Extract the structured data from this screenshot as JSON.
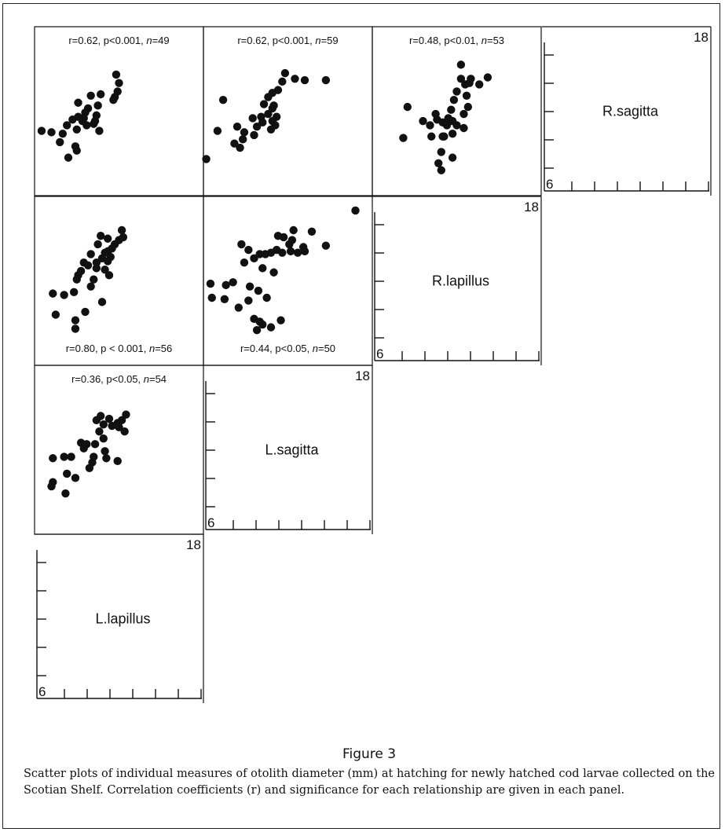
{
  "figure": {
    "number": "Figure 3",
    "caption": "Scatter plots of individual measures of otolith diameter (mm) at hatching for newly hatched cod larvae collected on the Scotian Shelf. Correlation coefficients (r) and significance for each relationship are given in each panel."
  },
  "axis": {
    "min_label": "6",
    "max_label": "18",
    "min": 6,
    "max": 18
  },
  "chart_data": [
    {
      "type": "scatter",
      "row": 0,
      "col": 0,
      "annotation": "r=0.62, p<0.001, n=49",
      "annotation_position": "top",
      "ylim": [
        6,
        18
      ],
      "xlim": [
        6,
        18
      ],
      "points": [
        [
          11.8,
          14.6
        ],
        [
          12.0,
          14.0
        ],
        [
          11.9,
          13.4
        ],
        [
          11.7,
          13.0
        ],
        [
          11.6,
          12.8
        ],
        [
          10.7,
          13.2
        ],
        [
          10.5,
          12.4
        ],
        [
          10.0,
          13.1
        ],
        [
          9.8,
          12.2
        ],
        [
          9.6,
          11.9
        ],
        [
          9.5,
          11.5
        ],
        [
          9.4,
          11.3
        ],
        [
          9.7,
          11.0
        ],
        [
          9.1,
          11.6
        ],
        [
          10.2,
          11.1
        ],
        [
          10.6,
          10.6
        ],
        [
          10.4,
          11.7
        ],
        [
          10.3,
          11.3
        ],
        [
          9.0,
          10.7
        ],
        [
          8.7,
          11.4
        ],
        [
          8.3,
          11.0
        ],
        [
          9.1,
          12.6
        ],
        [
          8.0,
          10.4
        ],
        [
          7.2,
          10.5
        ],
        [
          6.5,
          10.6
        ],
        [
          7.8,
          9.8
        ],
        [
          8.9,
          9.5
        ],
        [
          9.0,
          9.2
        ],
        [
          8.4,
          8.7
        ]
      ]
    },
    {
      "type": "scatter",
      "row": 0,
      "col": 1,
      "annotation": "r=0.62, p<0.001, n=59",
      "annotation_position": "top",
      "ylim": [
        6,
        18
      ],
      "xlim": [
        6,
        18
      ],
      "points": [
        [
          6.2,
          8.6
        ],
        [
          7.0,
          10.6
        ],
        [
          7.4,
          12.8
        ],
        [
          8.4,
          10.9
        ],
        [
          8.9,
          10.5
        ],
        [
          8.8,
          10.0
        ],
        [
          8.2,
          9.7
        ],
        [
          8.6,
          9.4
        ],
        [
          9.6,
          10.3
        ],
        [
          9.8,
          10.9
        ],
        [
          10.2,
          11.2
        ],
        [
          9.5,
          11.5
        ],
        [
          10.1,
          11.6
        ],
        [
          10.6,
          11.8
        ],
        [
          10.9,
          12.2
        ],
        [
          10.3,
          12.5
        ],
        [
          11.0,
          12.4
        ],
        [
          11.2,
          11.6
        ],
        [
          10.9,
          11.3
        ],
        [
          10.6,
          13.0
        ],
        [
          10.9,
          13.3
        ],
        [
          11.3,
          13.5
        ],
        [
          11.6,
          14.1
        ],
        [
          11.8,
          14.7
        ],
        [
          12.5,
          14.3
        ],
        [
          13.2,
          14.2
        ],
        [
          14.7,
          14.2
        ],
        [
          11.1,
          11.0
        ],
        [
          10.8,
          10.7
        ]
      ]
    },
    {
      "type": "scatter",
      "row": 0,
      "col": 2,
      "annotation": "r=0.48, p<0.01, n=53",
      "annotation_position": "top",
      "ylim": [
        6,
        18
      ],
      "xlim": [
        6,
        18
      ],
      "points": [
        [
          8.2,
          10.1
        ],
        [
          8.5,
          12.3
        ],
        [
          9.6,
          11.3
        ],
        [
          10.1,
          11.0
        ],
        [
          10.6,
          11.4
        ],
        [
          10.2,
          10.2
        ],
        [
          10.5,
          11.8
        ],
        [
          11.0,
          11.2
        ],
        [
          11.3,
          11.0
        ],
        [
          11.4,
          11.5
        ],
        [
          11.7,
          11.3
        ],
        [
          11.6,
          12.1
        ],
        [
          11.8,
          12.8
        ],
        [
          12.0,
          13.4
        ],
        [
          12.3,
          14.3
        ],
        [
          12.6,
          13.9
        ],
        [
          12.9,
          14.0
        ],
        [
          13.0,
          14.3
        ],
        [
          12.7,
          13.1
        ],
        [
          12.8,
          12.3
        ],
        [
          12.5,
          11.8
        ],
        [
          12.5,
          10.8
        ],
        [
          12.0,
          11.0
        ],
        [
          11.7,
          10.4
        ],
        [
          11.1,
          10.2
        ],
        [
          10.9,
          9.1
        ],
        [
          10.7,
          8.3
        ],
        [
          10.9,
          7.8
        ],
        [
          11.7,
          8.7
        ],
        [
          12.3,
          15.3
        ],
        [
          13.6,
          13.9
        ],
        [
          14.2,
          14.4
        ],
        [
          11.0,
          10.2
        ]
      ]
    },
    {
      "type": "scatter",
      "row": 1,
      "col": 0,
      "annotation": "r=0.80, p < 0.001, n=56",
      "annotation_position": "bottom",
      "ylim": [
        6,
        18
      ],
      "xlim": [
        6,
        18
      ],
      "points": [
        [
          12.2,
          15.6
        ],
        [
          12.3,
          15.1
        ],
        [
          12.0,
          14.9
        ],
        [
          11.7,
          14.6
        ],
        [
          11.5,
          14.3
        ],
        [
          11.2,
          14.1
        ],
        [
          11.0,
          14.0
        ],
        [
          11.4,
          13.7
        ],
        [
          11.2,
          13.4
        ],
        [
          10.8,
          13.6
        ],
        [
          10.4,
          13.3
        ],
        [
          10.0,
          13.9
        ],
        [
          10.5,
          14.6
        ],
        [
          10.7,
          15.2
        ],
        [
          11.2,
          15.0
        ],
        [
          9.8,
          13.1
        ],
        [
          9.5,
          13.3
        ],
        [
          9.3,
          12.7
        ],
        [
          9.1,
          12.4
        ],
        [
          9.0,
          12.1
        ],
        [
          8.8,
          11.2
        ],
        [
          10.2,
          12.1
        ],
        [
          10.0,
          11.6
        ],
        [
          11.3,
          12.4
        ],
        [
          11.0,
          12.8
        ],
        [
          10.4,
          12.9
        ],
        [
          8.1,
          11.0
        ],
        [
          7.3,
          11.1
        ],
        [
          7.5,
          9.6
        ],
        [
          8.9,
          9.2
        ],
        [
          8.9,
          8.6
        ],
        [
          9.6,
          9.8
        ],
        [
          10.8,
          10.5
        ]
      ]
    },
    {
      "type": "scatter",
      "row": 1,
      "col": 1,
      "annotation": "r=0.44, p<0.05, n=50",
      "annotation_position": "bottom",
      "ylim": [
        6,
        18
      ],
      "xlim": [
        6,
        18
      ],
      "points": [
        [
          16.8,
          17.0
        ],
        [
          12.4,
          15.6
        ],
        [
          11.7,
          15.1
        ],
        [
          11.3,
          15.2
        ],
        [
          12.1,
          14.6
        ],
        [
          12.3,
          14.9
        ],
        [
          13.1,
          14.4
        ],
        [
          13.7,
          15.5
        ],
        [
          14.7,
          14.5
        ],
        [
          13.2,
          14.1
        ],
        [
          12.7,
          14.0
        ],
        [
          12.2,
          14.1
        ],
        [
          11.6,
          14.0
        ],
        [
          11.2,
          14.2
        ],
        [
          10.8,
          14.0
        ],
        [
          10.4,
          13.9
        ],
        [
          10.0,
          13.9
        ],
        [
          9.6,
          13.6
        ],
        [
          9.2,
          14.2
        ],
        [
          8.7,
          14.6
        ],
        [
          8.9,
          13.3
        ],
        [
          10.2,
          12.9
        ],
        [
          11.0,
          12.6
        ],
        [
          8.1,
          11.9
        ],
        [
          7.6,
          11.7
        ],
        [
          7.5,
          10.7
        ],
        [
          6.5,
          11.8
        ],
        [
          6.6,
          10.8
        ],
        [
          8.5,
          10.1
        ],
        [
          9.2,
          10.6
        ],
        [
          9.3,
          11.6
        ],
        [
          10.5,
          10.8
        ],
        [
          9.9,
          11.3
        ],
        [
          10.0,
          9.1
        ],
        [
          9.6,
          9.3
        ],
        [
          10.2,
          8.9
        ],
        [
          9.8,
          8.5
        ],
        [
          10.8,
          8.7
        ],
        [
          11.5,
          9.2
        ]
      ]
    },
    {
      "type": "scatter",
      "row": 2,
      "col": 0,
      "annotation": "r=0.36, p<0.05, n=54",
      "annotation_position": "top",
      "ylim": [
        6,
        18
      ],
      "xlim": [
        6,
        18
      ],
      "points": [
        [
          12.5,
          14.5
        ],
        [
          12.2,
          14.1
        ],
        [
          11.9,
          13.9
        ],
        [
          12.0,
          13.6
        ],
        [
          12.4,
          13.3
        ],
        [
          11.5,
          13.7
        ],
        [
          11.3,
          14.2
        ],
        [
          10.7,
          14.4
        ],
        [
          10.4,
          14.1
        ],
        [
          10.9,
          13.8
        ],
        [
          10.6,
          13.3
        ],
        [
          10.9,
          12.8
        ],
        [
          10.3,
          12.4
        ],
        [
          9.7,
          12.4
        ],
        [
          9.3,
          12.5
        ],
        [
          9.5,
          12.1
        ],
        [
          10.2,
          11.5
        ],
        [
          10.1,
          11.1
        ],
        [
          9.9,
          10.7
        ],
        [
          11.0,
          11.9
        ],
        [
          11.1,
          11.4
        ],
        [
          11.9,
          11.2
        ],
        [
          8.6,
          11.5
        ],
        [
          8.1,
          11.5
        ],
        [
          7.3,
          11.4
        ],
        [
          8.3,
          10.3
        ],
        [
          8.9,
          10.0
        ],
        [
          7.3,
          9.7
        ],
        [
          7.2,
          9.4
        ],
        [
          8.2,
          8.9
        ]
      ]
    }
  ],
  "diagonal": [
    {
      "row": 0,
      "col": 3,
      "label": "R.sagitta"
    },
    {
      "row": 1,
      "col": 2,
      "label": "R.lapillus"
    },
    {
      "row": 2,
      "col": 1,
      "label": "L.sagitta"
    },
    {
      "row": 3,
      "col": 0,
      "label": "L.lapillus"
    }
  ]
}
